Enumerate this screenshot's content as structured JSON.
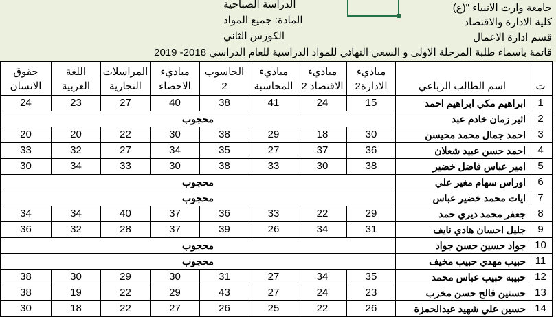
{
  "header": {
    "university": "جامعة وارث الانبياء \"(ع)",
    "college": "كلية الادارة والاقتصاد",
    "department": "قسم ادارة الاعمال",
    "study_type": "الدراسة الصباحية",
    "subject": "المادة: جميع المواد",
    "semester": "الكورس الثاني",
    "title": "قائمة باسماء طلبة المرحلة الاولى و السعي  النهائي للمواد الدراسية للعام الدراسي 2018- 2019"
  },
  "colors": {
    "header_bg": "#ebf1de",
    "selection": "#217346"
  },
  "table": {
    "columns": [
      {
        "l1": "ت",
        "l2": ""
      },
      {
        "l1": "",
        "l2": "اسم الطالب الرباعي"
      },
      {
        "l1": "مباديء",
        "l2": "الادارة2"
      },
      {
        "l1": "مباديء",
        "l2": "الاقتصاد 2"
      },
      {
        "l1": "مباديء",
        "l2": "المحاسبة"
      },
      {
        "l1": "الحاسوب",
        "l2": "2"
      },
      {
        "l1": "مباديء",
        "l2": "الاحصاء"
      },
      {
        "l1": "المراسلات",
        "l2": "التجارية"
      },
      {
        "l1": "اللغة",
        "l2": "العربية"
      },
      {
        "l1": "حقوق",
        "l2": "الانسان"
      }
    ],
    "blocked_label": "محجوب",
    "rows": [
      {
        "n": "1",
        "name": "ابراهيم مكي ابراهيم احمد",
        "scores": [
          "15",
          "24",
          "41",
          "38",
          "40",
          "27",
          "23",
          "24"
        ]
      },
      {
        "n": "2",
        "name": "اثير زمان خادم عبد",
        "blocked": true
      },
      {
        "n": "3",
        "name": "احمد جمال محمد محيسن",
        "scores": [
          "30",
          "18",
          "29",
          "38",
          "30",
          "22",
          "20",
          "20"
        ]
      },
      {
        "n": "4",
        "name": "احمد حسن عبيد شعلان",
        "scores": [
          "36",
          "37",
          "27",
          "35",
          "34",
          "27",
          "32",
          "33"
        ]
      },
      {
        "n": "5",
        "name": "امير عباس فاضل خضير",
        "scores": [
          "38",
          "30",
          "33",
          "38",
          "30",
          "33",
          "34",
          "30"
        ]
      },
      {
        "n": "6",
        "name": "اوراس سهام مغير علي",
        "blocked": true
      },
      {
        "n": "7",
        "name": "ايات محمد خضير عباس",
        "blocked": true
      },
      {
        "n": "8",
        "name": "جعفر محمد ديري حمد",
        "scores": [
          "29",
          "22",
          "33",
          "36",
          "37",
          "40",
          "34",
          "34"
        ]
      },
      {
        "n": "9",
        "name": "جليل احسان هادي نايف",
        "scores": [
          "31",
          "34",
          "26",
          "39",
          "37",
          "28",
          "32",
          "36"
        ]
      },
      {
        "n": "10",
        "name": "جواد حسين حسن جواد",
        "blocked": true
      },
      {
        "n": "11",
        "name": "حبيب مهدي حبيب مخيف",
        "blocked": true
      },
      {
        "n": "12",
        "name": "حبيبه حبيب عباس محمد",
        "scores": [
          "35",
          "34",
          "27",
          "31",
          "30",
          "29",
          "30",
          "38"
        ]
      },
      {
        "n": "13",
        "name": "حسنين فالح حسن مخرب",
        "scores": [
          "23",
          "24",
          "27",
          "43",
          "29",
          "22",
          "19",
          "38"
        ]
      },
      {
        "n": "14",
        "name": "حسين علي شهيد عبدالحمزة",
        "scores": [
          "26",
          "22",
          "25",
          "26",
          "27",
          "22",
          "18",
          "30"
        ]
      }
    ]
  }
}
